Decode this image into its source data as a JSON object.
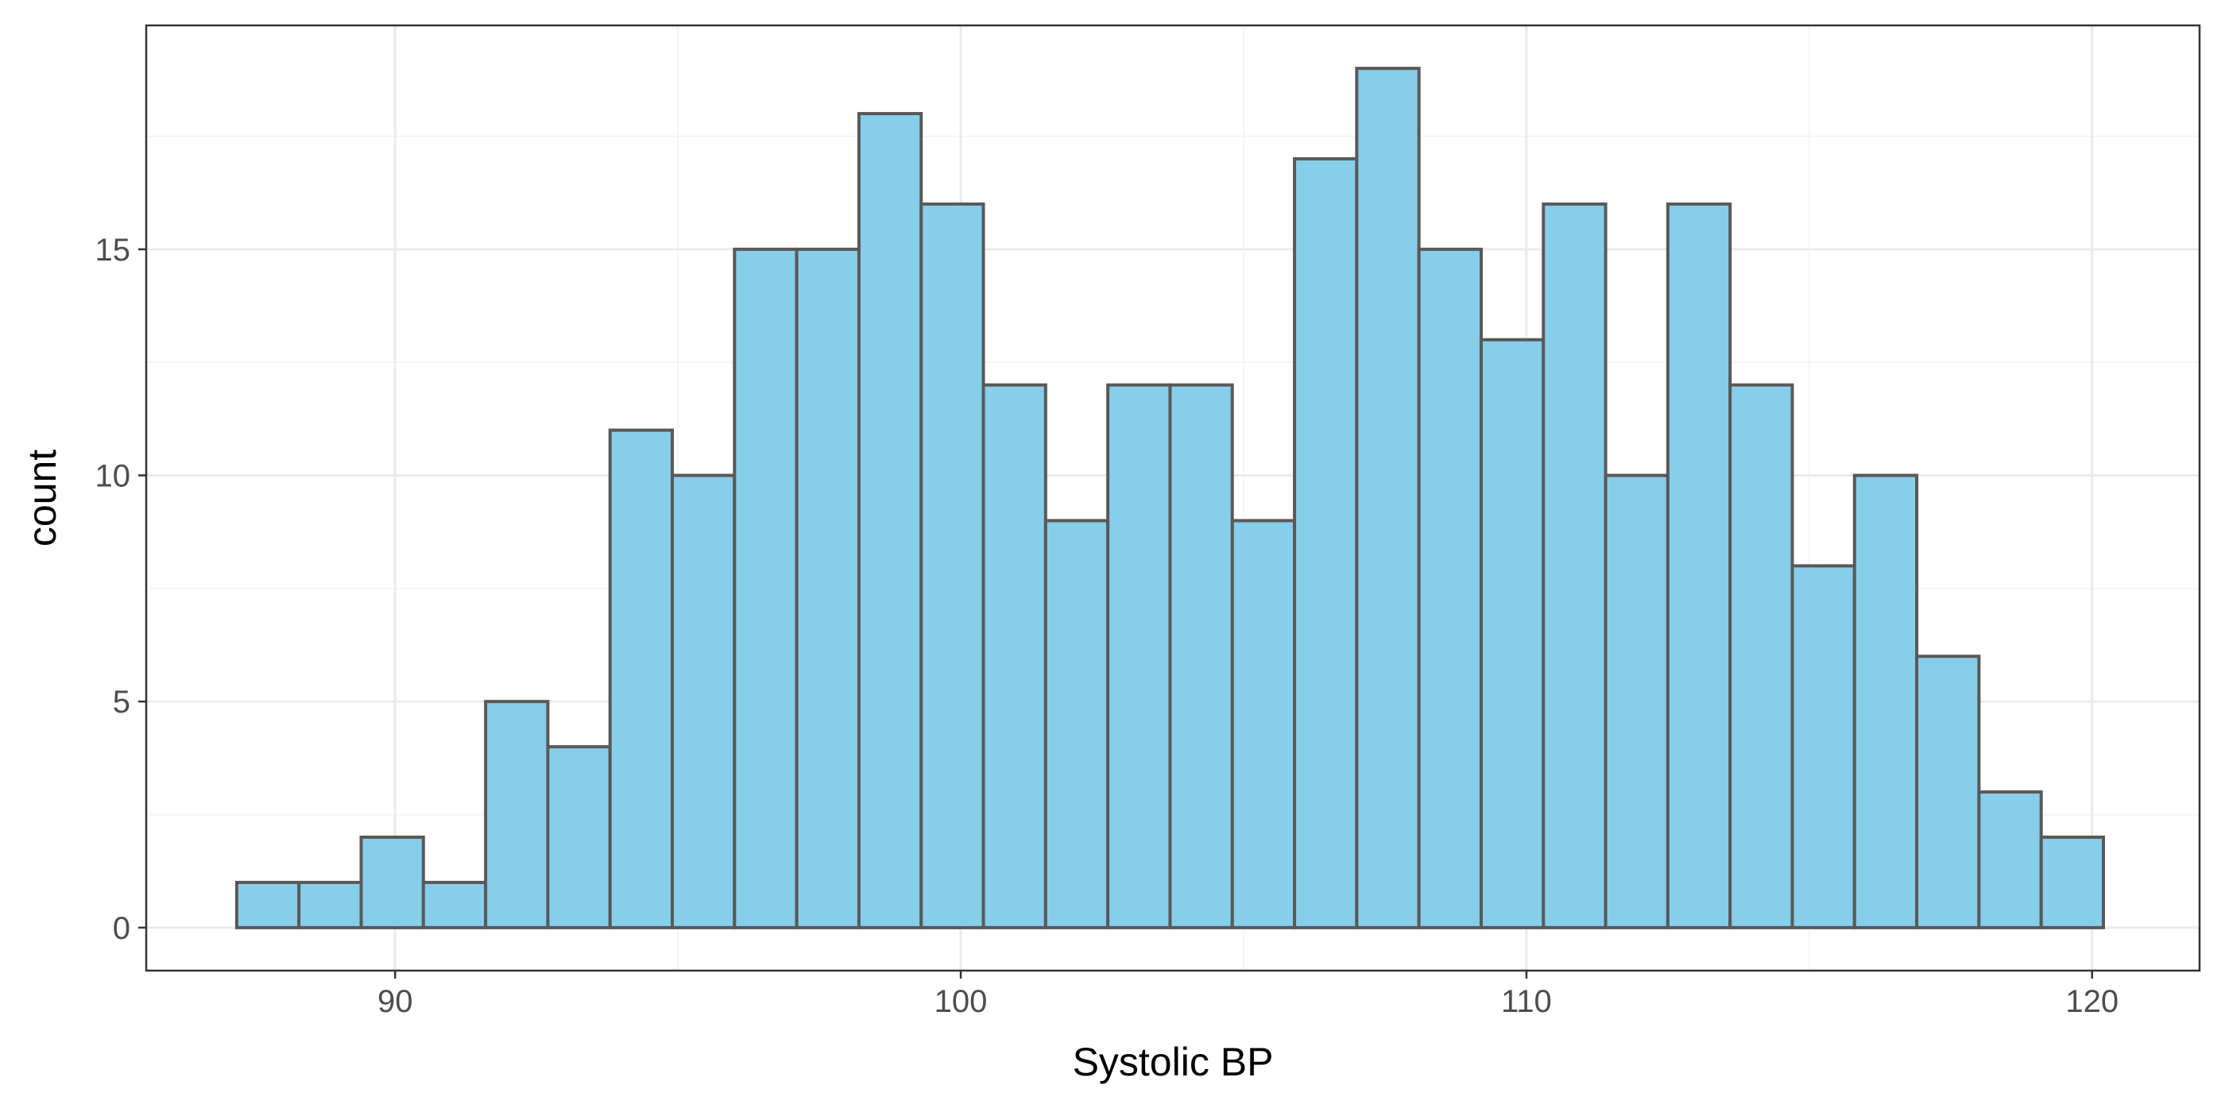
{
  "chart_data": {
    "type": "bar",
    "subtype": "histogram",
    "xlabel": "Systolic BP",
    "ylabel": "count",
    "xlim": [
      85.6,
      121.9
    ],
    "ylim": [
      -0.95,
      19.95
    ],
    "x_ticks": [
      90,
      100,
      110,
      120
    ],
    "y_ticks": [
      0,
      5,
      10,
      15
    ],
    "bin_width": 1.1,
    "bins_start": 87.2,
    "values": [
      1,
      1,
      2,
      1,
      5,
      4,
      11,
      10,
      15,
      15,
      18,
      16,
      12,
      9,
      12,
      12,
      9,
      17,
      19,
      15,
      13,
      16,
      10,
      16,
      12,
      8,
      10,
      6,
      3,
      2
    ],
    "grid": true,
    "legend": "none",
    "colors": {
      "bar_fill": "#87CEEB",
      "bar_outline": "#595959",
      "grid": "#ebebeb",
      "border": "#333333"
    }
  }
}
